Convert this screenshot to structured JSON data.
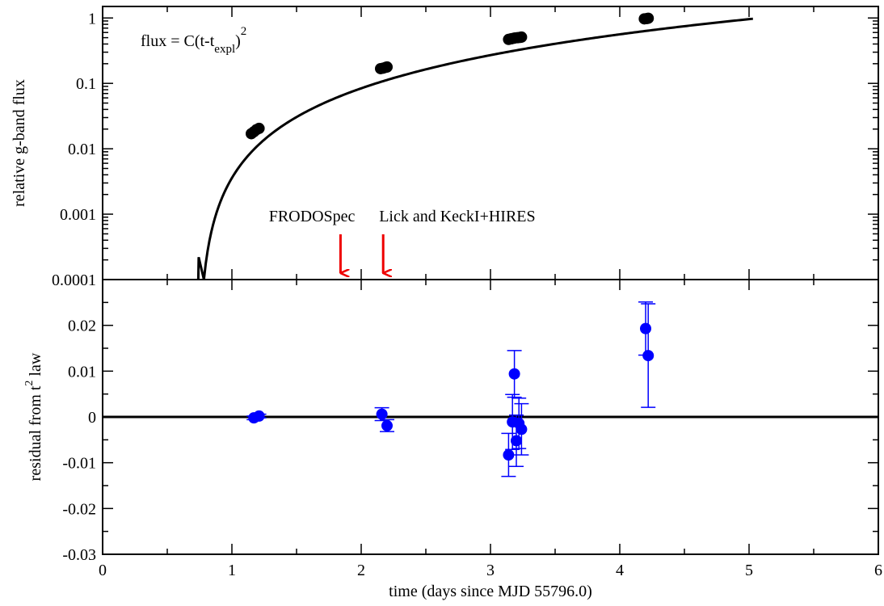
{
  "chart_data": [
    {
      "type": "line",
      "panel": "top",
      "yscale": "log",
      "ylabel": "relative g-band flux",
      "xlim": [
        0,
        6
      ],
      "ylim": [
        0.0001,
        1.5
      ],
      "x_ticks": [
        0,
        1,
        2,
        3,
        4,
        5,
        6
      ],
      "y_ticks": [
        0.0001,
        0.001,
        0.01,
        0.1,
        1
      ],
      "y_tick_labels": [
        "0.0001",
        "0.001",
        "0.01",
        "0.1",
        "1"
      ],
      "formula": {
        "base": "flux = C(t-t",
        "subscript": "expl",
        "close": ")",
        "superscript": "2"
      },
      "model": {
        "t_expl": 0.74,
        "C": 0.0529,
        "exponent": 2,
        "x_end": 5.03
      },
      "series": [
        {
          "x": [
            1.15,
            1.17,
            1.19,
            1.21,
            2.15,
            2.17,
            2.19,
            2.2,
            3.14,
            3.16,
            3.18,
            3.19,
            3.21,
            3.23,
            3.24,
            4.19,
            4.21,
            4.22
          ],
          "y": [
            0.017,
            0.0182,
            0.0196,
            0.0205,
            0.168,
            0.171,
            0.176,
            0.178,
            0.47,
            0.48,
            0.49,
            0.495,
            0.5,
            0.505,
            0.51,
            0.97,
            0.98,
            0.99
          ],
          "color": "#000000"
        }
      ],
      "annotations": [
        {
          "text": "FRODOSpec",
          "x": 1.84,
          "color": "#ee0000"
        },
        {
          "text": "Lick and KeckI+HIRES",
          "x": 2.17,
          "color": "#ee0000"
        }
      ]
    },
    {
      "type": "scatter",
      "panel": "bottom",
      "xlabel": "time (days since MJD 55796.0)",
      "ylabel": {
        "base": "residual from t",
        "superscript": "2",
        "rest": " law"
      },
      "xlim": [
        0,
        6
      ],
      "ylim": [
        -0.03,
        0.03
      ],
      "x_ticks": [
        0,
        1,
        2,
        3,
        4,
        5,
        6
      ],
      "x_tick_labels": [
        "0",
        "1",
        "2",
        "3",
        "4",
        "5",
        "6"
      ],
      "y_ticks": [
        -0.03,
        -0.02,
        -0.01,
        0,
        0.01,
        0.02
      ],
      "y_tick_labels": [
        "-0.03",
        "-0.02",
        "-0.01",
        "0",
        "0.01",
        "0.02"
      ],
      "reference_line": 0,
      "series": [
        {
          "color": "#0000ff",
          "x": [
            1.17,
            1.21,
            2.16,
            2.2,
            3.14,
            3.17,
            3.185,
            3.2,
            3.22,
            3.24,
            4.2,
            4.22
          ],
          "y": [
            -0.0002,
            0.0002,
            0.0006,
            -0.0019,
            -0.0083,
            -0.0011,
            0.0094,
            -0.0052,
            -0.0014,
            -0.0027,
            0.0193,
            0.0134
          ],
          "err": [
            0.0004,
            0.0004,
            0.0014,
            0.0013,
            0.0047,
            0.006,
            0.0051,
            0.0056,
            0.0055,
            0.0056,
            0.0058,
            0.0113
          ]
        }
      ]
    }
  ]
}
